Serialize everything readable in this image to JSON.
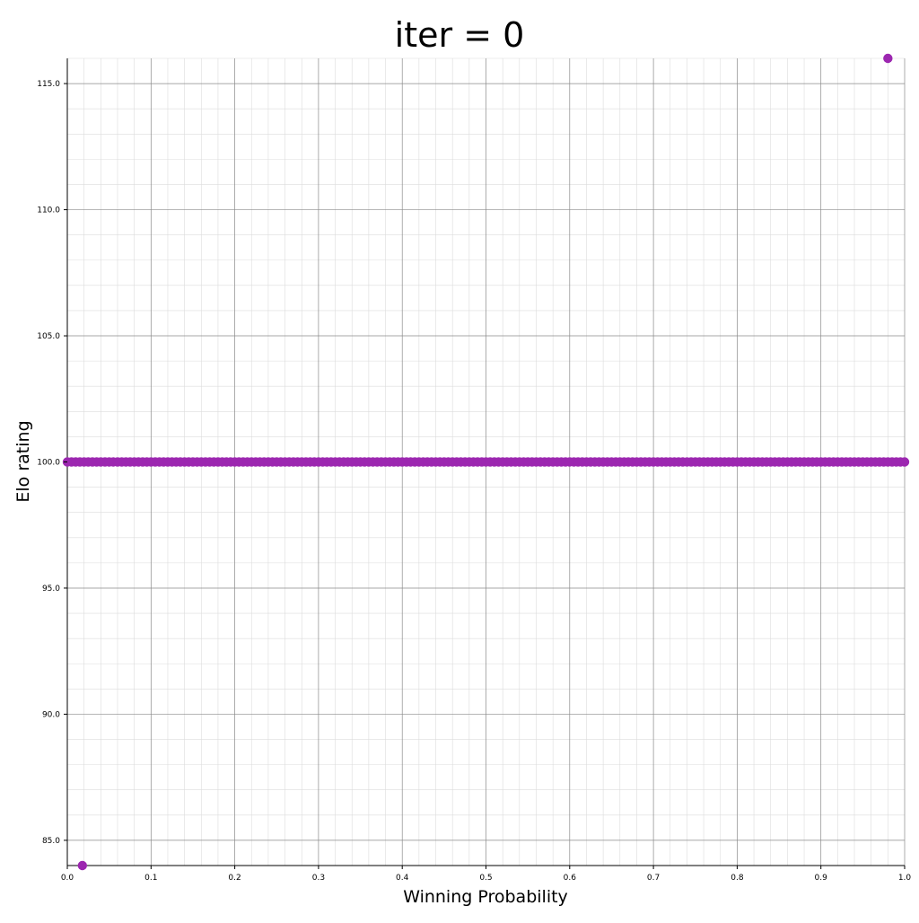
{
  "chart_data": {
    "type": "scatter",
    "title": "iter = 0",
    "xlabel": "Winning Probability",
    "ylabel": "Elo rating",
    "xlim": [
      0,
      1
    ],
    "ylim": [
      84,
      116
    ],
    "x_ticks": [
      0.0,
      0.1,
      0.2,
      0.3,
      0.4,
      0.5,
      0.6,
      0.7,
      0.8,
      0.9,
      1.0
    ],
    "x_tick_labels": [
      "0.0",
      "0.1",
      "0.2",
      "0.3",
      "0.4",
      "0.5",
      "0.6",
      "0.7",
      "0.8",
      "0.9",
      "1.0"
    ],
    "y_ticks": [
      85,
      90,
      95,
      100,
      105,
      110,
      115
    ],
    "y_tick_labels": [
      "85.0",
      "90.0",
      "95.0",
      "100.0",
      "105.0",
      "110.0",
      "115.0"
    ],
    "grid": true,
    "minor_grid": true,
    "marker_color": "#9c27b0",
    "series": [
      {
        "points": [
          {
            "x": 0.018,
            "y": 84.0
          },
          {
            "x": 0.98,
            "y": 116.0
          }
        ],
        "band": {
          "y": 100.0,
          "x_from": 0.0,
          "x_to": 1.0,
          "x_step": 0.005
        }
      }
    ]
  }
}
